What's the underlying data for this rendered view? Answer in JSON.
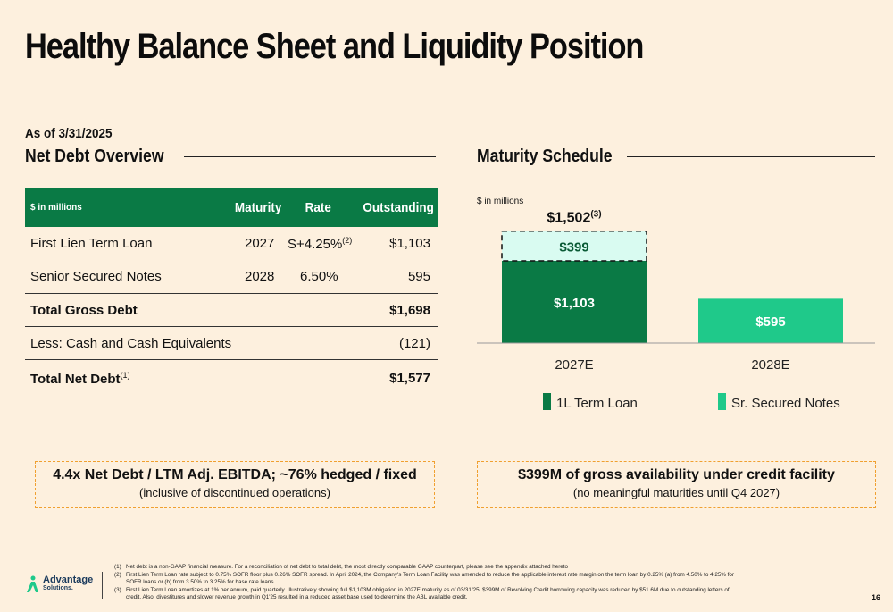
{
  "title": "Healthy Balance Sheet and Liquidity Position",
  "as_of": "As of 3/31/2025",
  "net_debt": {
    "heading": "Net Debt Overview",
    "unit": "$ in millions",
    "columns": [
      "Maturity",
      "Rate",
      "Outstanding"
    ],
    "rows": [
      {
        "label": "First Lien Term Loan",
        "maturity": "2027",
        "rate": "S+4.25%",
        "rate_note": "(2)",
        "outstanding": "$1,103"
      },
      {
        "label": "Senior Secured Notes",
        "maturity": "2028",
        "rate": "6.50%",
        "outstanding": "595"
      }
    ],
    "gross": {
      "label": "Total Gross Debt",
      "outstanding": "$1,698"
    },
    "cash": {
      "label": "Less: Cash and Cash Equivalents",
      "outstanding": "(121)"
    },
    "net": {
      "label": "Total Net Debt",
      "note": "(1)",
      "outstanding": "$1,577"
    },
    "callout_main": "4.4x Net Debt / LTM Adj. EBITDA; ~76% hedged / fixed",
    "callout_sub": "(inclusive of discontinued operations)"
  },
  "maturity": {
    "heading": "Maturity Schedule",
    "callout_main": "$399M of gross availability under credit facility",
    "callout_sub": "(no meaningful maturities until Q4 2027)"
  },
  "chart_data": {
    "type": "bar",
    "unit": "$ in millions",
    "categories": [
      "2027E",
      "2028E"
    ],
    "series": [
      {
        "name": "1L Term Loan",
        "values": [
          1103,
          0
        ],
        "labels": [
          "$1,103",
          ""
        ],
        "color": "#0a7a45"
      },
      {
        "name": "Sr. Secured Notes",
        "values": [
          0,
          595
        ],
        "labels": [
          "",
          "$595"
        ],
        "color": "#1fc98a"
      }
    ],
    "revolver": {
      "category": "2027E",
      "value": 399,
      "label": "$399",
      "color": "#d9fbf1"
    },
    "total_label": "$1,502",
    "total_note": "(3)",
    "legend": [
      "1L Term Loan",
      "Sr. Secured Notes"
    ]
  },
  "footnotes": [
    {
      "n": "(1)",
      "text": "Net debt is a non-GAAP financial measure. For a reconciliation of net debt to total debt, the most directly comparable GAAP counterpart, please see the appendix attached hereto"
    },
    {
      "n": "(2)",
      "text": "First Lien Term Loan rate subject to 0.75% SOFR floor plus 0.26% SOFR spread. In April 2024, the Company's Term Loan Facility was amended to reduce the applicable interest rate margin on the term loan by 0.25% (a) from 4.50% to 4.25% for SOFR loans or (b) from 3.50% to 3.25% for base rate loans"
    },
    {
      "n": "(3)",
      "text": "First Lien Term Loan amortizes at 1% per annum, paid quarterly. Illustratively showing full $1,103M obligation in 2027E maturity as of 03/31/25, $399M of Revolving Credit borrowing capacity was reduced by $51.6M due to outstanding letters of credit. Also, divestitures and slower revenue growth in Q1'25 resulted in a reduced asset base used to determine the ABL available credit."
    }
  ],
  "logo": {
    "name": "Advantage",
    "sub": "Solutions."
  },
  "page_number": "16"
}
